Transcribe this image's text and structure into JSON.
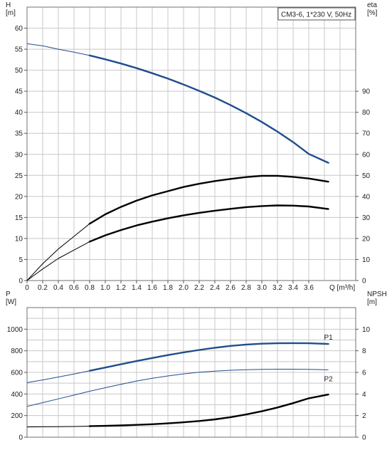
{
  "title_box": "CM3-6, 1*230 V, 50Hz",
  "colors": {
    "blue": "#1f4e8c",
    "black": "#000000",
    "grid": "#c8c8c8",
    "frame": "#707070"
  },
  "chart_data": [
    {
      "type": "line",
      "title": "",
      "xlabel": "Q [m³/h]",
      "ylabel": "H\n[m]",
      "y2label": "eta\n[%]",
      "xlim": [
        0,
        4.2
      ],
      "ylim": [
        0,
        65
      ],
      "y2lim": [
        0,
        130
      ],
      "grid": true,
      "x_ticks": [
        "0",
        "0.2",
        "0.4",
        "0.6",
        "0.8",
        "1.0",
        "1.2",
        "1.4",
        "1.6",
        "1.8",
        "2.0",
        "2.2",
        "2.4",
        "2.6",
        "2.8",
        "3.0",
        "3.2",
        "3.4",
        "3.6"
      ],
      "y_ticks": [
        "0",
        "5",
        "10",
        "15",
        "20",
        "25",
        "30",
        "35",
        "40",
        "45",
        "50",
        "55",
        "60"
      ],
      "y2_ticks": [
        "0",
        "10",
        "20",
        "30",
        "40",
        "50",
        "60",
        "70",
        "80",
        "90"
      ],
      "series": [
        {
          "key": "head",
          "axis": "left",
          "color": "#1f4e8c",
          "x": [
            0,
            0.2,
            0.4,
            0.6,
            0.8,
            1.0,
            1.2,
            1.4,
            1.6,
            1.8,
            2.0,
            2.2,
            2.4,
            2.6,
            2.8,
            3.0,
            3.2,
            3.4,
            3.6,
            3.85
          ],
          "y": [
            56.3,
            55.8,
            55.0,
            54.3,
            53.5,
            52.6,
            51.6,
            50.5,
            49.3,
            48.0,
            46.6,
            45.1,
            43.5,
            41.7,
            39.8,
            37.7,
            35.4,
            32.9,
            30.1,
            28.0
          ],
          "op_start": 0.8
        },
        {
          "key": "eta",
          "axis": "right",
          "color": "#000000",
          "x": [
            0,
            0.2,
            0.4,
            0.6,
            0.8,
            1.0,
            1.2,
            1.4,
            1.6,
            1.8,
            2.0,
            2.2,
            2.4,
            2.6,
            2.8,
            3.0,
            3.2,
            3.4,
            3.6,
            3.85
          ],
          "y": [
            0,
            8,
            15,
            21,
            27,
            31.5,
            35,
            38,
            40.5,
            42.5,
            44.5,
            46,
            47.3,
            48.3,
            49.2,
            49.8,
            49.8,
            49.3,
            48.5,
            47
          ],
          "op_start": 0.8
        },
        {
          "key": "eta_op",
          "axis": "right",
          "color": "#000000",
          "x": [
            0,
            0.2,
            0.4,
            0.6,
            0.8,
            1.0,
            1.2,
            1.4,
            1.6,
            1.8,
            2.0,
            2.2,
            2.4,
            2.6,
            2.8,
            3.0,
            3.2,
            3.4,
            3.6,
            3.85
          ],
          "y": [
            0,
            5.5,
            10.5,
            14.5,
            18.5,
            21.5,
            24,
            26.2,
            28,
            29.6,
            31,
            32.2,
            33.2,
            34.1,
            34.9,
            35.4,
            35.7,
            35.6,
            35.2,
            34
          ],
          "op_start": 0.8
        }
      ]
    },
    {
      "type": "line",
      "title": "",
      "xlabel": "",
      "ylabel": "P\n[W]",
      "y2label": "NPSH\n[m]",
      "xlim": [
        0,
        4.2
      ],
      "ylim": [
        0,
        1200
      ],
      "y2lim": [
        0,
        12
      ],
      "grid": true,
      "y_ticks": [
        "0",
        "200",
        "400",
        "600",
        "800",
        "1000"
      ],
      "y2_ticks": [
        "0",
        "2",
        "4",
        "6",
        "8",
        "10"
      ],
      "series": [
        {
          "key": "P1",
          "name": "P1",
          "axis": "left",
          "color": "#1f4e8c",
          "x": [
            0,
            0.2,
            0.4,
            0.6,
            0.8,
            1.0,
            1.2,
            1.4,
            1.6,
            1.8,
            2.0,
            2.2,
            2.4,
            2.6,
            2.8,
            3.0,
            3.2,
            3.4,
            3.6,
            3.85
          ],
          "y": [
            505,
            530,
            557,
            585,
            615,
            645,
            675,
            705,
            733,
            760,
            785,
            808,
            828,
            845,
            858,
            866,
            870,
            871,
            870,
            863
          ],
          "op_start": 0.8
        },
        {
          "key": "P2",
          "name": "P2",
          "axis": "left",
          "color": "#1f4e8c",
          "x": [
            0,
            0.2,
            0.4,
            0.6,
            0.8,
            1.0,
            1.2,
            1.4,
            1.6,
            1.8,
            2.0,
            2.2,
            2.4,
            2.6,
            2.8,
            3.0,
            3.2,
            3.4,
            3.6,
            3.85
          ],
          "y": [
            285,
            320,
            355,
            390,
            425,
            458,
            490,
            520,
            545,
            567,
            586,
            601,
            612,
            620,
            625,
            628,
            630,
            630,
            628,
            624
          ],
          "op_start": 3.9
        },
        {
          "key": "NPSH",
          "axis": "right",
          "color": "#000000",
          "x": [
            0,
            0.2,
            0.4,
            0.6,
            0.8,
            1.0,
            1.2,
            1.4,
            1.6,
            1.8,
            2.0,
            2.2,
            2.4,
            2.6,
            2.8,
            3.0,
            3.2,
            3.4,
            3.6,
            3.85
          ],
          "y": [
            0.95,
            0.96,
            0.97,
            0.99,
            1.02,
            1.05,
            1.09,
            1.14,
            1.2,
            1.28,
            1.38,
            1.5,
            1.65,
            1.85,
            2.1,
            2.4,
            2.75,
            3.15,
            3.6,
            3.95
          ],
          "op_start": 0.8
        }
      ]
    }
  ]
}
